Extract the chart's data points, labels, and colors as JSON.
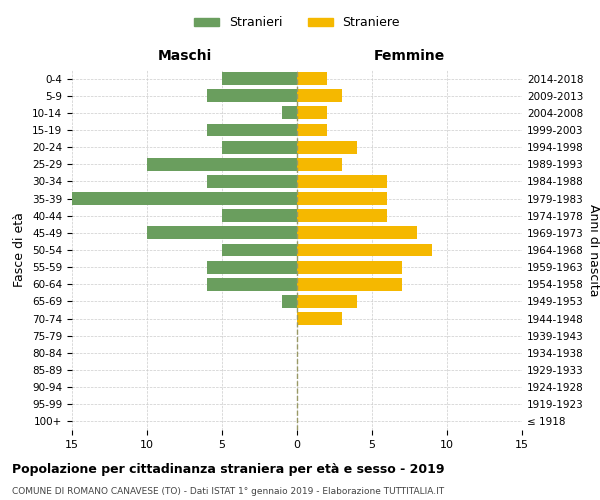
{
  "age_groups": [
    "100+",
    "95-99",
    "90-94",
    "85-89",
    "80-84",
    "75-79",
    "70-74",
    "65-69",
    "60-64",
    "55-59",
    "50-54",
    "45-49",
    "40-44",
    "35-39",
    "30-34",
    "25-29",
    "20-24",
    "15-19",
    "10-14",
    "5-9",
    "0-4"
  ],
  "birth_years": [
    "≤ 1918",
    "1919-1923",
    "1924-1928",
    "1929-1933",
    "1934-1938",
    "1939-1943",
    "1944-1948",
    "1949-1953",
    "1954-1958",
    "1959-1963",
    "1964-1968",
    "1969-1973",
    "1974-1978",
    "1979-1983",
    "1984-1988",
    "1989-1993",
    "1994-1998",
    "1999-2003",
    "2004-2008",
    "2009-2013",
    "2014-2018"
  ],
  "males": [
    0,
    0,
    0,
    0,
    0,
    0,
    0,
    1,
    6,
    6,
    5,
    10,
    5,
    15,
    6,
    10,
    5,
    6,
    1,
    6,
    5
  ],
  "females": [
    0,
    0,
    0,
    0,
    0,
    0,
    3,
    4,
    7,
    7,
    9,
    8,
    6,
    6,
    6,
    3,
    4,
    2,
    2,
    3,
    2
  ],
  "male_color": "#6a9e5e",
  "female_color": "#f5b800",
  "grid_color": "#cccccc",
  "center_line_color": "#999966",
  "title": "Popolazione per cittadinanza straniera per età e sesso - 2019",
  "subtitle": "COMUNE DI ROMANO CANAVESE (TO) - Dati ISTAT 1° gennaio 2019 - Elaborazione TUTTITALIA.IT",
  "xlabel_left": "Maschi",
  "xlabel_right": "Femmine",
  "ylabel_left": "Fasce di età",
  "ylabel_right": "Anni di nascita",
  "legend_male": "Stranieri",
  "legend_female": "Straniere",
  "xlim": 15,
  "background_color": "#ffffff"
}
